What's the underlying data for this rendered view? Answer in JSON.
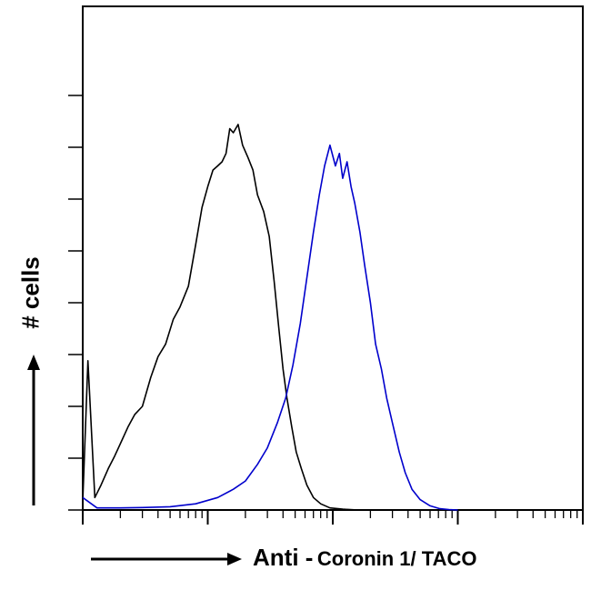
{
  "chart_data": {
    "type": "line",
    "title": "",
    "ylabel": "# cells",
    "xlabel": {
      "prefix": "Anti -",
      "target": "Coronin 1/ TACO"
    },
    "xscale": "log",
    "xlim": [
      1,
      10000
    ],
    "ylim": [
      0,
      100
    ],
    "grid": false,
    "legend": "none",
    "series": [
      {
        "color": "#000000",
        "points": [
          [
            1.0,
            2
          ],
          [
            1.1,
            36
          ],
          [
            1.25,
            3
          ],
          [
            1.4,
            6
          ],
          [
            1.6,
            10
          ],
          [
            1.8,
            13
          ],
          [
            2.0,
            16
          ],
          [
            2.3,
            20
          ],
          [
            2.6,
            23
          ],
          [
            3.0,
            25
          ],
          [
            3.5,
            32
          ],
          [
            4.0,
            37
          ],
          [
            4.6,
            40
          ],
          [
            5.3,
            46
          ],
          [
            6.0,
            49
          ],
          [
            7.0,
            54
          ],
          [
            8.0,
            64
          ],
          [
            9.0,
            73
          ],
          [
            10.0,
            78
          ],
          [
            11.0,
            82
          ],
          [
            12.0,
            83
          ],
          [
            13.0,
            84
          ],
          [
            14.0,
            86
          ],
          [
            15.0,
            92
          ],
          [
            16.0,
            91
          ],
          [
            17.5,
            93
          ],
          [
            19.0,
            88
          ],
          [
            21.0,
            85
          ],
          [
            23.0,
            82
          ],
          [
            25.0,
            76
          ],
          [
            28.0,
            72
          ],
          [
            31.0,
            66
          ],
          [
            34.0,
            55
          ],
          [
            37.0,
            44
          ],
          [
            40.0,
            34
          ],
          [
            43.0,
            27
          ],
          [
            47.0,
            20
          ],
          [
            51.0,
            14
          ],
          [
            56.0,
            10
          ],
          [
            62.0,
            6
          ],
          [
            70.0,
            3
          ],
          [
            80.0,
            1.5
          ],
          [
            95.0,
            0.5
          ],
          [
            120.0,
            0.2
          ],
          [
            160.0,
            0
          ]
        ]
      },
      {
        "color": "#0000cc",
        "points": [
          [
            1.0,
            3
          ],
          [
            1.3,
            0.5
          ],
          [
            2.0,
            0.5
          ],
          [
            3.0,
            0.6
          ],
          [
            5.0,
            0.8
          ],
          [
            8.0,
            1.5
          ],
          [
            12.0,
            3
          ],
          [
            16.0,
            5
          ],
          [
            20.0,
            7
          ],
          [
            25.0,
            11
          ],
          [
            30.0,
            15
          ],
          [
            36.0,
            21
          ],
          [
            42.0,
            27
          ],
          [
            48.0,
            35
          ],
          [
            55.0,
            45
          ],
          [
            62.0,
            56
          ],
          [
            70.0,
            67
          ],
          [
            78.0,
            76
          ],
          [
            86.0,
            83
          ],
          [
            95.0,
            88
          ],
          [
            105.0,
            83
          ],
          [
            113.0,
            86
          ],
          [
            120.0,
            80
          ],
          [
            130.0,
            84
          ],
          [
            140.0,
            78
          ],
          [
            150.0,
            74
          ],
          [
            165.0,
            67
          ],
          [
            180.0,
            59
          ],
          [
            200.0,
            50
          ],
          [
            220.0,
            40
          ],
          [
            245.0,
            34
          ],
          [
            270.0,
            27
          ],
          [
            300.0,
            21
          ],
          [
            340.0,
            14
          ],
          [
            380.0,
            9
          ],
          [
            430.0,
            5
          ],
          [
            500.0,
            2.5
          ],
          [
            600.0,
            1
          ],
          [
            720.0,
            0.3
          ],
          [
            850.0,
            0.1
          ],
          [
            1000.0,
            0
          ]
        ]
      }
    ]
  }
}
